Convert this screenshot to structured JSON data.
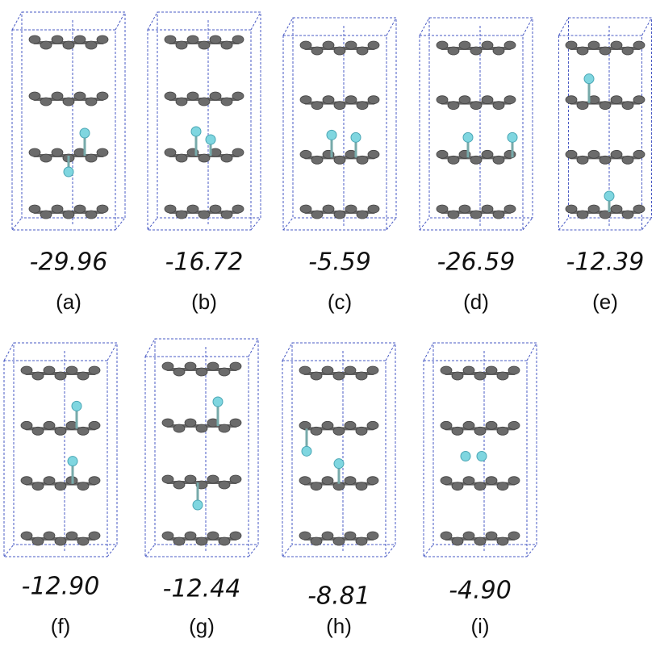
{
  "panels": [
    {
      "energy": "-29.96",
      "label": "(a)"
    },
    {
      "energy": "-16.72",
      "label": "(b)"
    },
    {
      "energy": "-5.59",
      "label": "(c)"
    },
    {
      "energy": "-26.59",
      "label": "(d)"
    },
    {
      "energy": "-12.39",
      "label": "(e)"
    },
    {
      "energy": "-12.90",
      "label": "(f)"
    },
    {
      "energy": "-12.44",
      "label": "(g)"
    },
    {
      "energy": "-8.81",
      "label": "(h)"
    },
    {
      "energy": "-4.90",
      "label": "(i)"
    }
  ]
}
